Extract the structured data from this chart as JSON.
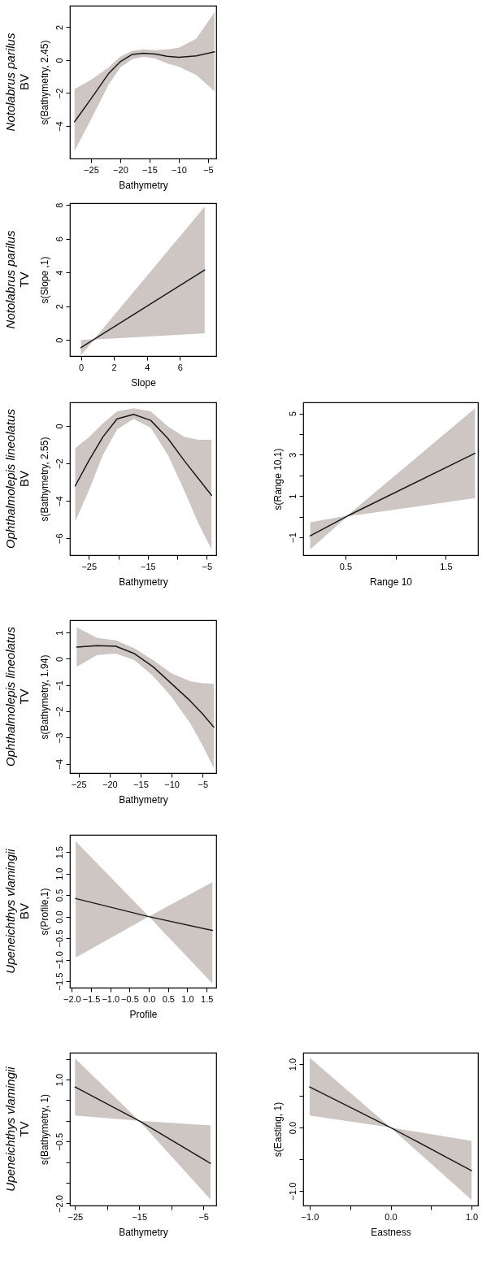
{
  "chart_data": [
    {
      "type": "line",
      "title": "Notolabrus parilus",
      "subtitle": "BV",
      "xlabel": "Bathymetry",
      "ylabel": "s(Bathymetry, 2.45)",
      "xlim": [
        -28.6,
        -3.6
      ],
      "xticks": [
        -25,
        -20,
        -15,
        -10,
        -5
      ],
      "ylim": [
        -5.97,
        3.3
      ],
      "yticks": [
        -4,
        -2,
        0,
        2
      ],
      "grid": false,
      "series": [
        {
          "color": "#1a1a1a",
          "x": [
            -27.8,
            -25,
            -22,
            -20,
            -18,
            -16,
            -14,
            -12,
            -10,
            -7,
            -3.9
          ],
          "values": [
            -3.74,
            -2.35,
            -0.82,
            -0.1,
            0.34,
            0.42,
            0.37,
            0.23,
            0.17,
            0.25,
            0.5
          ],
          "upper": [
            -1.75,
            -1.2,
            -0.45,
            0.2,
            0.55,
            0.65,
            0.6,
            0.65,
            0.75,
            1.3,
            2.9
          ],
          "lower": [
            -5.5,
            -3.6,
            -1.5,
            -0.45,
            0.05,
            0.2,
            0.1,
            -0.2,
            -0.4,
            -0.9,
            -1.9
          ]
        }
      ]
    },
    {
      "type": "line",
      "title": "Notolabrus parilus",
      "subtitle": "TV",
      "xlabel": "Slope",
      "ylabel": "s(Slope ,1)",
      "xlim": [
        -0.67,
        8.2
      ],
      "xticks": [
        0,
        2,
        4,
        6
      ],
      "ylim": [
        -0.95,
        8.1
      ],
      "yticks": [
        0,
        2,
        4,
        6,
        8
      ],
      "grid": false,
      "series": [
        {
          "color": "#1a1a1a",
          "x": [
            0,
            0.8,
            7.5
          ],
          "values": [
            -0.45,
            0.04,
            4.15
          ],
          "upper": [
            0,
            0.05,
            7.9
          ],
          "lower": [
            -0.9,
            0.03,
            0.4
          ]
        }
      ]
    },
    {
      "type": "line",
      "title": "Ophthalmolepis lineolatus",
      "subtitle": "BV",
      "xlabel": "Bathymetry",
      "ylabel": "s(Bathymetry, 2.55)",
      "xlim": [
        -28.2,
        -3.4
      ],
      "xticks": [
        -25,
        {
          "value": -20,
          "label": null
        },
        -15,
        {
          "value": -10,
          "label": null
        },
        -5
      ],
      "ylim": [
        -6.9,
        1.26
      ],
      "yticks": [
        -6,
        -4,
        -2,
        0
      ],
      "grid": false,
      "series": [
        {
          "color": "#1a1a1a",
          "x": [
            -27.3,
            -25,
            -22.6,
            -20.2,
            -17.4,
            -14.5,
            -11.6,
            -8.8,
            -6.4,
            -4.2
          ],
          "values": [
            -3.2,
            -1.86,
            -0.58,
            0.38,
            0.62,
            0.3,
            -0.66,
            -1.86,
            -2.82,
            -3.7
          ],
          "upper": [
            -1.18,
            -0.61,
            0.14,
            0.78,
            0.94,
            0.78,
            -0.02,
            -0.58,
            -0.74,
            -0.74
          ],
          "lower": [
            -5.1,
            -3.46,
            -1.54,
            -0.18,
            0.38,
            -0.1,
            -1.54,
            -3.46,
            -5.22,
            -6.58
          ]
        }
      ]
    },
    {
      "type": "line",
      "xlabel": "Range 10",
      "ylabel": "s(Range 10,1)",
      "xlim": [
        0.08,
        1.82
      ],
      "xticks": [
        0.5,
        {
          "value": 1,
          "label": null
        },
        1.5
      ],
      "ylim": [
        -1.87,
        5.54
      ],
      "yticks": [
        -1,
        {
          "value": 0,
          "label": null
        },
        1,
        {
          "value": 2,
          "label": null
        },
        3,
        {
          "value": 4,
          "label": null
        },
        5
      ],
      "grid": false,
      "series": [
        {
          "color": "#1a1a1a",
          "x": [
            0.15,
            0.52,
            1.79
          ],
          "values": [
            -0.93,
            0.03,
            3.07
          ],
          "upper": [
            -0.27,
            0.05,
            5.25
          ],
          "lower": [
            -1.58,
            0.01,
            0.9
          ]
        }
      ]
    },
    {
      "type": "line",
      "title": "Ophthalmolepis lineolatus",
      "subtitle": "TV",
      "xlabel": "Bathymetry",
      "ylabel": "s(Bathymetry, 1.94)",
      "xlim": [
        -26.4,
        -2.8
      ],
      "xticks": [
        -25,
        -20,
        -15,
        -10,
        -5
      ],
      "ylim": [
        -4.35,
        1.47
      ],
      "yticks": [
        -4,
        -3,
        -2,
        -1,
        0,
        1
      ],
      "grid": false,
      "series": [
        {
          "color": "#1a1a1a",
          "x": [
            -25.3,
            -22,
            -19,
            -16,
            -13,
            -10,
            -7,
            -5,
            -3.2
          ],
          "values": [
            0.45,
            0.5,
            0.48,
            0.2,
            -0.3,
            -0.95,
            -1.6,
            -2.1,
            -2.6
          ],
          "upper": [
            1.2,
            0.8,
            0.7,
            0.4,
            -0.05,
            -0.55,
            -0.85,
            -0.93,
            -0.95
          ],
          "lower": [
            -0.3,
            0.15,
            0.2,
            -0.05,
            -0.65,
            -1.45,
            -2.45,
            -3.3,
            -4.15
          ]
        }
      ]
    },
    {
      "type": "line",
      "title": "Upeneichthys vlamingii",
      "subtitle": "BV",
      "xlabel": "Profile",
      "ylabel": "s(Profile,1)",
      "xlim": [
        -2.05,
        1.75
      ],
      "xticks": [
        {
          "value": -2,
          "label": "−2.0"
        },
        {
          "value": -1.5,
          "label": "−1.5"
        },
        {
          "value": -1,
          "label": "−1.0"
        },
        {
          "value": -0.5,
          "label": "−0.5"
        },
        {
          "value": 0,
          "label": "0.0"
        },
        {
          "value": 0.5,
          "label": "0.5"
        },
        {
          "value": 1,
          "label": "1.0"
        },
        {
          "value": 1.5,
          "label": "1.5"
        }
      ],
      "ylim": [
        -1.65,
        1.9
      ],
      "yticks": [
        {
          "value": -1.5,
          "label": "−1.5"
        },
        {
          "value": -1,
          "label": "−1.0"
        },
        {
          "value": -0.5,
          "label": "−0.5"
        },
        {
          "value": 0,
          "label": "0.0"
        },
        {
          "value": 0.5,
          "label": "0.5"
        },
        {
          "value": 1,
          "label": "1.0"
        },
        {
          "value": 1.5,
          "label": "1.5"
        }
      ],
      "grid": false,
      "series": [
        {
          "color": "#1a1a1a",
          "x": [
            -1.9,
            0,
            1.65
          ],
          "values": [
            0.42,
            0,
            -0.32
          ],
          "upper": [
            1.75,
            0,
            0.8
          ],
          "lower": [
            -0.95,
            0,
            -1.55
          ]
        }
      ]
    },
    {
      "type": "line",
      "title": "Upeneichthys vlamingii",
      "subtitle": "TV",
      "xlabel": "Bathymetry",
      "ylabel": "s(Bathymetry, 1)",
      "xlim": [
        -25.8,
        -3
      ],
      "xticks": [
        -25,
        {
          "value": -20,
          "label": null
        },
        -15,
        {
          "value": -10,
          "label": null
        },
        -5
      ],
      "ylim": [
        -2.05,
        1.65
      ],
      "yticks": [
        {
          "value": -2,
          "label": "−2.0"
        },
        {
          "value": -1.5,
          "label": null
        },
        {
          "value": -1,
          "label": null
        },
        {
          "value": -0.5,
          "label": "−0.5"
        },
        {
          "value": 0,
          "label": null
        },
        {
          "value": 0.5,
          "label": null
        },
        {
          "value": 1,
          "label": "1.0"
        },
        {
          "value": 1.5,
          "label": null
        }
      ],
      "grid": false,
      "series": [
        {
          "color": "#1a1a1a",
          "x": [
            -25,
            -15,
            -3.9
          ],
          "values": [
            0.82,
            0,
            -1.03
          ],
          "upper": [
            1.51,
            0,
            -0.11
          ],
          "lower": [
            0.13,
            0,
            -1.9
          ]
        }
      ]
    },
    {
      "type": "line",
      "xlabel": "Eastness",
      "ylabel": "s(Easting, 1)",
      "xlim": [
        -1.08,
        1.08
      ],
      "xticks": [
        {
          "value": -1,
          "label": "−1.0"
        },
        {
          "value": -0.5,
          "label": null
        },
        {
          "value": 0,
          "label": "0.0"
        },
        {
          "value": 0.5,
          "label": null
        },
        {
          "value": 1,
          "label": "1.0"
        }
      ],
      "ylim": [
        -1.23,
        1.18
      ],
      "yticks": [
        {
          "value": -1,
          "label": "−1.0"
        },
        {
          "value": -0.5,
          "label": null
        },
        {
          "value": 0,
          "label": "0.0"
        },
        {
          "value": 0.5,
          "label": null
        },
        {
          "value": 1,
          "label": "1.0"
        }
      ],
      "grid": false,
      "series": [
        {
          "color": "#1a1a1a",
          "x": [
            -1,
            0,
            1
          ],
          "values": [
            0.64,
            0,
            -0.68
          ],
          "upper": [
            1.1,
            0,
            -0.21
          ],
          "lower": [
            0.19,
            0,
            -1.14
          ]
        }
      ]
    }
  ]
}
